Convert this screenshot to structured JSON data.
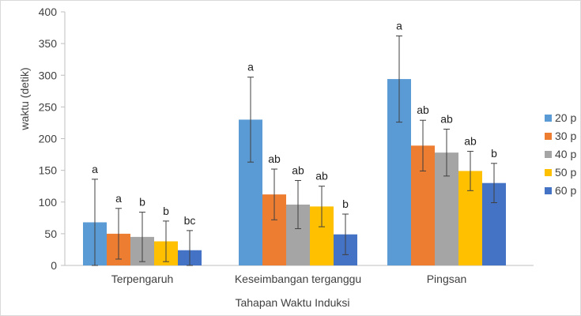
{
  "chart_data": {
    "type": "bar",
    "title": "",
    "xlabel": "Tahapan Waktu Induksi",
    "ylabel": "waktu (detik)",
    "ylim": [
      0,
      400
    ],
    "yticks": [
      0,
      50,
      100,
      150,
      200,
      250,
      300,
      350,
      400
    ],
    "categories": [
      "Terpengaruh",
      "Keseimbangan terganggu",
      "Pingsan"
    ],
    "legend_position": "right",
    "series": [
      {
        "name": "20 p",
        "color": "#5B9BD5",
        "values": [
          68,
          230,
          294
        ],
        "errors": [
          68,
          67,
          68
        ],
        "labels": [
          "a",
          "a",
          "a"
        ]
      },
      {
        "name": "30 p",
        "color": "#ED7D31",
        "values": [
          50,
          112,
          189
        ],
        "errors": [
          40,
          40,
          40
        ],
        "labels": [
          "a",
          "ab",
          "ab"
        ]
      },
      {
        "name": "40 p",
        "color": "#A5A5A5",
        "values": [
          45,
          96,
          178
        ],
        "errors": [
          39,
          38,
          37
        ],
        "labels": [
          "b",
          "ab",
          "ab"
        ]
      },
      {
        "name": "50 p",
        "color": "#FFC000",
        "values": [
          38,
          93,
          149
        ],
        "errors": [
          32,
          32,
          31
        ],
        "labels": [
          "b",
          "ab",
          "ab"
        ]
      },
      {
        "name": "60 p",
        "color": "#4472C4",
        "values": [
          24,
          49,
          130
        ],
        "errors": [
          31,
          32,
          31
        ],
        "labels": [
          "bc",
          "b",
          "b"
        ]
      }
    ]
  }
}
